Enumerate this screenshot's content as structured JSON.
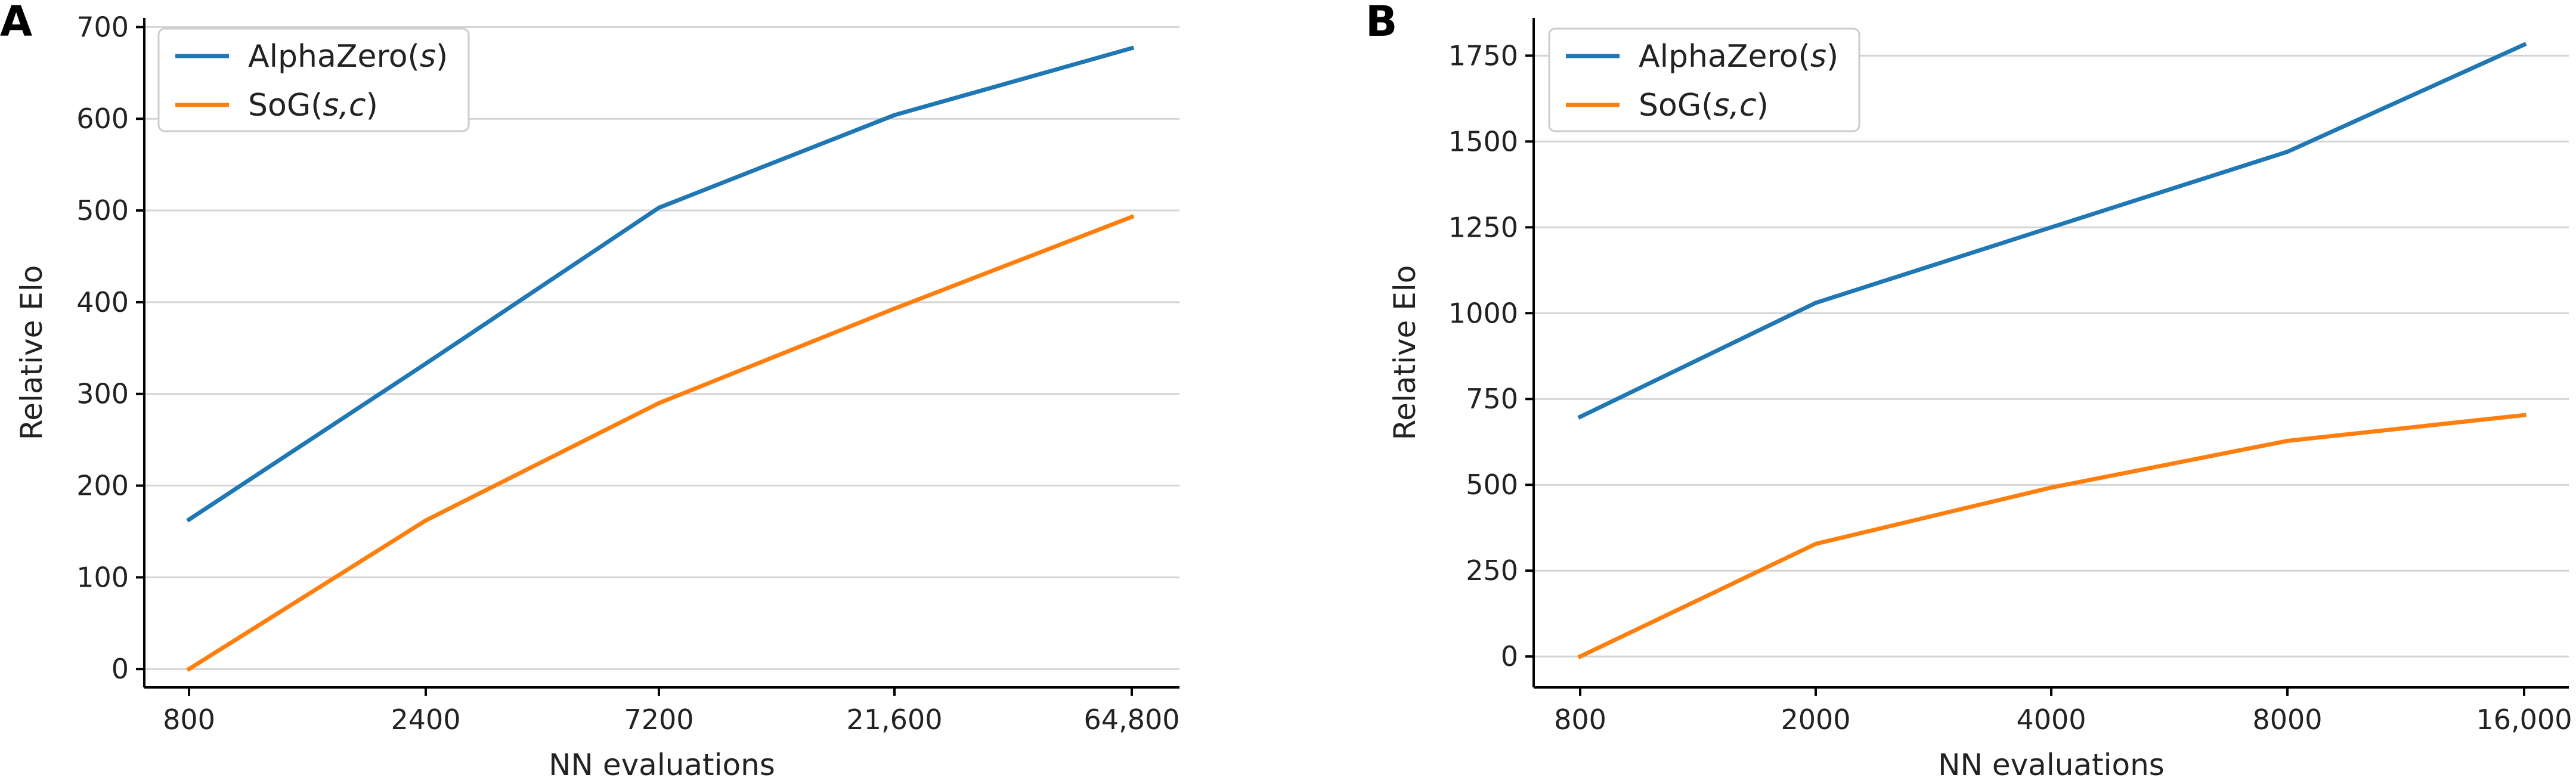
{
  "chart_data": [
    {
      "panel_label": "A",
      "type": "line",
      "xlabel": "NN evaluations",
      "ylabel": "Relative Elo",
      "categories": [
        "800",
        "2400",
        "7200",
        "21,600",
        "64,800"
      ],
      "yticks": [
        0,
        100,
        200,
        300,
        400,
        500,
        600,
        700
      ],
      "ylim": [
        -20,
        710
      ],
      "grid": "horizontal",
      "legend_position": "top-left",
      "series": [
        {
          "name": "AlphaZero(s)",
          "name_base": "AlphaZero(",
          "name_args": "s",
          "name_suffix": ")",
          "color": "#1f77b4",
          "values": [
            163,
            333,
            503,
            604,
            677
          ]
        },
        {
          "name": "SoG(s,c)",
          "name_base": "SoG(",
          "name_args": "s,c",
          "name_suffix": ")",
          "color": "#ff7f0e",
          "values": [
            0,
            162,
            290,
            393,
            493
          ]
        }
      ]
    },
    {
      "panel_label": "B",
      "type": "line",
      "xlabel": "NN evaluations",
      "ylabel": "Relative Elo",
      "categories": [
        "800",
        "2000",
        "4000",
        "8000",
        "16,000"
      ],
      "yticks": [
        0,
        250,
        500,
        750,
        1000,
        1250,
        1500,
        1750
      ],
      "ylim": [
        -90,
        1860
      ],
      "grid": "horizontal",
      "legend_position": "top-left",
      "series": [
        {
          "name": "AlphaZero(s)",
          "name_base": "AlphaZero(",
          "name_args": "s",
          "name_suffix": ")",
          "color": "#1f77b4",
          "values": [
            698,
            1030,
            1250,
            1470,
            1782
          ]
        },
        {
          "name": "SoG(s,c)",
          "name_base": "SoG(",
          "name_args": "s,c",
          "name_suffix": ")",
          "color": "#ff7f0e",
          "values": [
            0,
            328,
            492,
            628,
            703
          ]
        }
      ]
    }
  ]
}
